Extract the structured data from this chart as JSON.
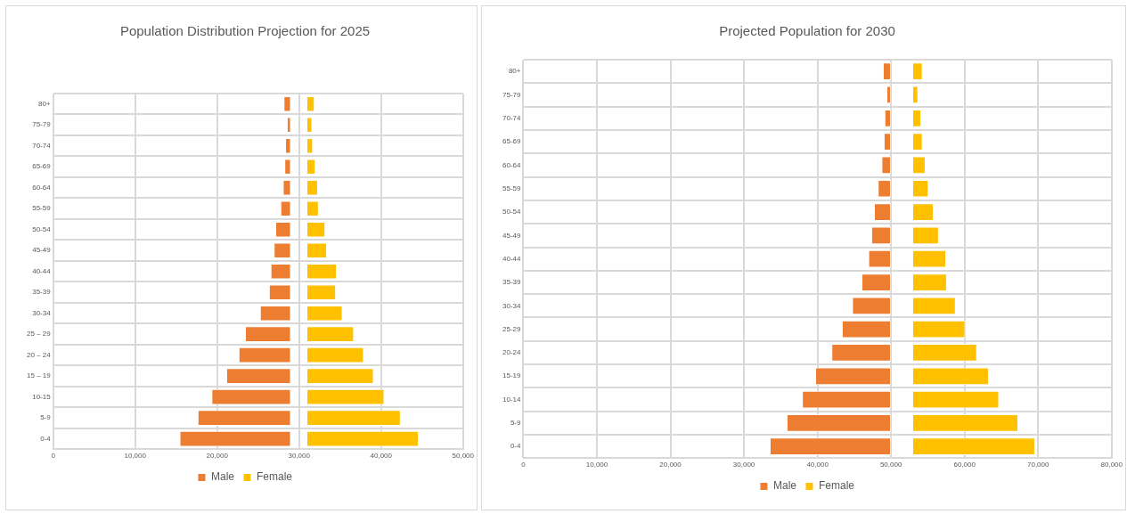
{
  "chart_data": [
    {
      "type": "bar",
      "orientation": "horizontal",
      "title": "Population Distribution Projection for 2025",
      "categories": [
        "80+",
        "75-79",
        "70-74",
        "65-69",
        "60-64",
        "55-59",
        "50-54",
        "45-49",
        "40-44",
        "35-39",
        "30-34",
        "25 – 29",
        "20 – 24",
        "15 – 19",
        "10-15",
        "5-9",
        "0-4"
      ],
      "series": [
        {
          "name": "Male",
          "color": "#ed7d31",
          "base": [
            28200,
            28600,
            28400,
            28300,
            28100,
            27800,
            27200,
            27000,
            26600,
            26400,
            25300,
            23500,
            22700,
            21200,
            19400,
            17700,
            15500
          ],
          "values": [
            800,
            400,
            600,
            700,
            900,
            1200,
            1800,
            2000,
            2400,
            2600,
            3700,
            5500,
            6300,
            7800,
            9600,
            11300,
            13500
          ]
        },
        {
          "name": "Female",
          "color": "#ffc000",
          "base": [
            31000,
            31000,
            31000,
            31000,
            31000,
            31000,
            31000,
            31000,
            31000,
            31000,
            31000,
            31000,
            31000,
            31000,
            31000,
            31000,
            31000
          ],
          "values": [
            900,
            600,
            700,
            1000,
            1300,
            1400,
            2200,
            2400,
            3600,
            3500,
            4300,
            5700,
            6900,
            8100,
            9400,
            11400,
            13600
          ]
        }
      ],
      "xlim": [
        0,
        50000
      ],
      "xticks": [
        {
          "value": 0,
          "label": "0"
        },
        {
          "value": 10000,
          "label": "10,000"
        },
        {
          "value": 20000,
          "label": "20,000"
        },
        {
          "value": 30000,
          "label": "30,000"
        },
        {
          "value": 40000,
          "label": "40,000"
        },
        {
          "value": 50000,
          "label": "50,000"
        }
      ],
      "grid": true,
      "legend": "bottom"
    },
    {
      "type": "bar",
      "orientation": "horizontal",
      "title": "Projected Population for 2030",
      "categories": [
        "80+",
        "75-79",
        "70-74",
        "65-69",
        "60-64",
        "55-59",
        "50-54",
        "45-49",
        "40-44",
        "35-39",
        "30-34",
        "25-29",
        "20-24",
        "15-19",
        "10-14",
        "5-9",
        "0-4"
      ],
      "series": [
        {
          "name": "Male",
          "color": "#ed7d31",
          "base": [
            49000,
            49500,
            49200,
            49100,
            48800,
            48300,
            47800,
            47400,
            47000,
            46100,
            44800,
            43400,
            42000,
            39800,
            38000,
            35900,
            33600
          ],
          "values": [
            1000,
            500,
            800,
            900,
            1200,
            1700,
            2200,
            2600,
            3000,
            3900,
            5200,
            6600,
            8000,
            10200,
            12000,
            14100,
            16400
          ]
        },
        {
          "name": "Female",
          "color": "#ffc000",
          "base": [
            53000,
            53000,
            53000,
            53000,
            53000,
            53000,
            53000,
            53000,
            53000,
            53000,
            53000,
            53000,
            53000,
            53000,
            53000,
            53000,
            53000
          ],
          "values": [
            1300,
            700,
            1100,
            1300,
            1700,
            2100,
            2800,
            3500,
            4500,
            4600,
            5800,
            7100,
            8700,
            10300,
            11700,
            14300,
            16600
          ]
        }
      ],
      "xlim": [
        0,
        80000
      ],
      "xticks": [
        {
          "value": 0,
          "label": "0"
        },
        {
          "value": 10000,
          "label": "10,000"
        },
        {
          "value": 20000,
          "label": "20,000"
        },
        {
          "value": 30000,
          "label": "30,000"
        },
        {
          "value": 40000,
          "label": "40,000"
        },
        {
          "value": 50000,
          "label": "50,000"
        },
        {
          "value": 60000,
          "label": "60,000"
        },
        {
          "value": 70000,
          "label": "70,000"
        },
        {
          "value": 80000,
          "label": "80,000"
        }
      ],
      "grid": true,
      "legend": "bottom"
    }
  ]
}
